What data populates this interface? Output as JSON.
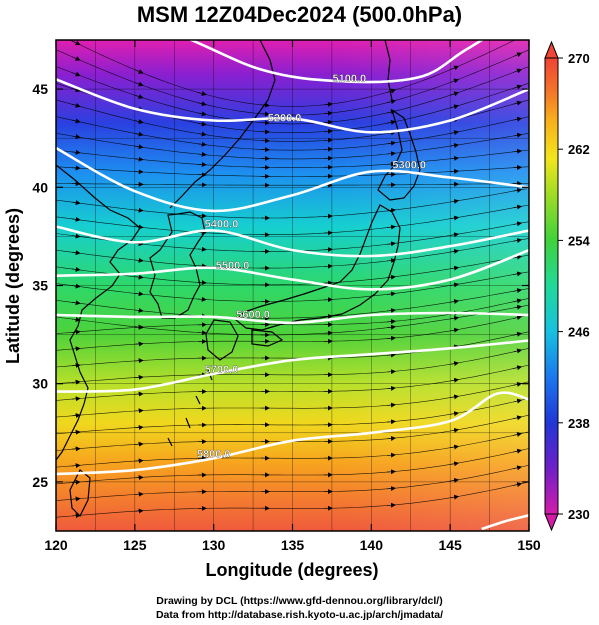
{
  "title": "MSM 12Z04Dec2024 (500.0hPa)",
  "xlabel": "Longitude (degrees)",
  "ylabel": "Latitude  (degrees)",
  "credit_line1": "Drawing by DCL (https://www.gfd-dennou.org/library/dcl/)",
  "credit_line2": "Data from http://database.rish.kyoto-u.ac.jp/arch/jmadata/",
  "colors": {
    "contour": "#ffffff",
    "arrow": "#000000",
    "coast": "#000000"
  },
  "chart_data": {
    "type": "heatmap",
    "xlim": [
      120,
      150
    ],
    "ylim": [
      22.5,
      47.5
    ],
    "xticks": [
      120,
      125,
      130,
      135,
      140,
      145,
      150
    ],
    "yticks": [
      25,
      30,
      35,
      40,
      45
    ],
    "colorbar": {
      "min": 230,
      "max": 270,
      "ticks": [
        230,
        238,
        246,
        254,
        262,
        270
      ]
    },
    "fill_variable_range": [
      230,
      270
    ],
    "contours": [
      {
        "label": "5100.0",
        "label_at": [
          138.6,
          45.5
        ],
        "points": [
          [
            120,
            49.5
          ],
          [
            127,
            48
          ],
          [
            133,
            46
          ],
          [
            138,
            45.4
          ],
          [
            143,
            45.6
          ],
          [
            146,
            47
          ],
          [
            150,
            49
          ]
        ]
      },
      {
        "label": "5200.0",
        "label_at": [
          134.5,
          43.5
        ],
        "points": [
          [
            120,
            45.5
          ],
          [
            125,
            44
          ],
          [
            130,
            43.4
          ],
          [
            135,
            43.5
          ],
          [
            140,
            42.8
          ],
          [
            145,
            43.4
          ],
          [
            150,
            45
          ]
        ]
      },
      {
        "label": "5300.0",
        "label_at": [
          142.4,
          41.1
        ],
        "points": [
          [
            120,
            42
          ],
          [
            125,
            39.8
          ],
          [
            130,
            38.8
          ],
          [
            135,
            39.6
          ],
          [
            140,
            40.8
          ],
          [
            145,
            40.5
          ],
          [
            150,
            40
          ]
        ]
      },
      {
        "label": "5400.0",
        "label_at": [
          130.5,
          38.1
        ],
        "points": [
          [
            120,
            38
          ],
          [
            125,
            37.2
          ],
          [
            130,
            37.8
          ],
          [
            135,
            36.8
          ],
          [
            140,
            36.5
          ],
          [
            145,
            37
          ],
          [
            150,
            37.8
          ]
        ]
      },
      {
        "label": "5500.0",
        "label_at": [
          131.2,
          36.0
        ],
        "points": [
          [
            120,
            35.5
          ],
          [
            125,
            35.6
          ],
          [
            130,
            35.9
          ],
          [
            135,
            35.3
          ],
          [
            140,
            34.8
          ],
          [
            145,
            35.3
          ],
          [
            150,
            36.8
          ]
        ]
      },
      {
        "label": "5600.0",
        "label_at": [
          132.5,
          33.5
        ],
        "points": [
          [
            120,
            33.5
          ],
          [
            125,
            33.4
          ],
          [
            130,
            33.4
          ],
          [
            135,
            33.1
          ],
          [
            140,
            33.5
          ],
          [
            145,
            33.6
          ],
          [
            150,
            33.5
          ]
        ]
      },
      {
        "label": "5700.0",
        "label_at": [
          130.5,
          30.7
        ],
        "points": [
          [
            120,
            29.6
          ],
          [
            125,
            29.7
          ],
          [
            130,
            30.5
          ],
          [
            135,
            31.2
          ],
          [
            140,
            31.5
          ],
          [
            145,
            31.8
          ],
          [
            150,
            32.2
          ]
        ]
      },
      {
        "label": "5800.0",
        "label_at": [
          130.0,
          26.4
        ],
        "points": [
          [
            120,
            25.4
          ],
          [
            125,
            25.6
          ],
          [
            130,
            26.2
          ],
          [
            135,
            27.1
          ],
          [
            140,
            27.5
          ],
          [
            145,
            28.1
          ],
          [
            148,
            29.5
          ],
          [
            150,
            29.2
          ]
        ]
      },
      {
        "label": "",
        "label_at": null,
        "points": [
          [
            147,
            22.6
          ],
          [
            148.5,
            23
          ],
          [
            150,
            23.3
          ]
        ]
      }
    ]
  }
}
